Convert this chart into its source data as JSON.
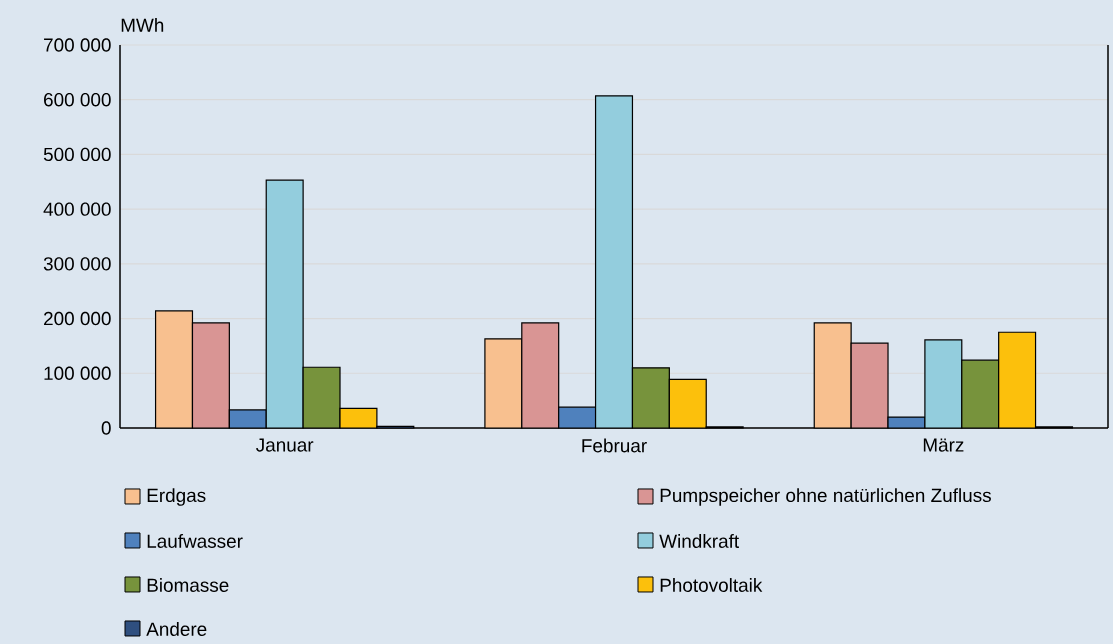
{
  "chart_data": {
    "type": "bar",
    "ylabel": "MWh",
    "categories": [
      "Januar",
      "Februar",
      "März"
    ],
    "series": [
      {
        "name": "Erdgas",
        "color": "#f8c08f",
        "values": [
          214000,
          163000,
          192000
        ]
      },
      {
        "name": "Pumpspeicher ohne natürlichen Zufluss",
        "color": "#d99594",
        "values": [
          192000,
          192000,
          155000
        ]
      },
      {
        "name": "Laufwasser",
        "color": "#4f81bd",
        "values": [
          33000,
          38000,
          20000
        ]
      },
      {
        "name": "Windkraft",
        "color": "#93cddd",
        "values": [
          453000,
          607000,
          161000
        ]
      },
      {
        "name": "Biomasse",
        "color": "#77933c",
        "values": [
          111000,
          110000,
          124000
        ]
      },
      {
        "name": "Photovoltaik",
        "color": "#fcc00c",
        "values": [
          36000,
          89000,
          175000
        ]
      },
      {
        "name": "Andere",
        "color": "#2f4f7f",
        "values": [
          3000,
          2000,
          2000
        ]
      }
    ],
    "ylim": [
      0,
      700000
    ],
    "yticks": [
      {
        "value": 0,
        "label": "0"
      },
      {
        "value": 100000,
        "label": "100 000"
      },
      {
        "value": 200000,
        "label": "200 000"
      },
      {
        "value": 300000,
        "label": "300 000"
      },
      {
        "value": 400000,
        "label": "400 000"
      },
      {
        "value": 500000,
        "label": "500 000"
      },
      {
        "value": 600000,
        "label": "600 000"
      },
      {
        "value": 700000,
        "label": "700 000"
      }
    ],
    "grid": "y",
    "legend": "bottom"
  }
}
